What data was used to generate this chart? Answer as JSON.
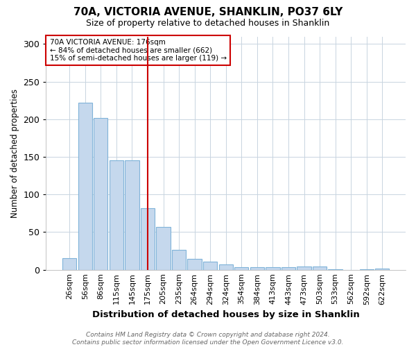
{
  "title1": "70A, VICTORIA AVENUE, SHANKLIN, PO37 6LY",
  "title2": "Size of property relative to detached houses in Shanklin",
  "xlabel": "Distribution of detached houses by size in Shanklin",
  "ylabel": "Number of detached properties",
  "categories": [
    "26sqm",
    "56sqm",
    "86sqm",
    "115sqm",
    "145sqm",
    "175sqm",
    "205sqm",
    "235sqm",
    "264sqm",
    "294sqm",
    "324sqm",
    "354sqm",
    "384sqm",
    "413sqm",
    "443sqm",
    "473sqm",
    "503sqm",
    "533sqm",
    "562sqm",
    "592sqm",
    "622sqm"
  ],
  "values": [
    15,
    222,
    202,
    145,
    145,
    82,
    57,
    26,
    14,
    11,
    7,
    3,
    3,
    3,
    3,
    4,
    4,
    1,
    0,
    1,
    2
  ],
  "bar_color": "#c5d8ed",
  "bar_edge_color": "#7fb3d9",
  "vline_x": 5,
  "vline_color": "#cc0000",
  "annotation_text": "70A VICTORIA AVENUE: 176sqm\n← 84% of detached houses are smaller (662)\n15% of semi-detached houses are larger (119) →",
  "annotation_box_color": "#ffffff",
  "annotation_box_edge": "#cc0000",
  "ylim": [
    0,
    310
  ],
  "yticks": [
    0,
    50,
    100,
    150,
    200,
    250,
    300
  ],
  "footnote": "Contains HM Land Registry data © Crown copyright and database right 2024.\nContains public sector information licensed under the Open Government Licence v3.0.",
  "bg_color": "#ffffff",
  "plot_bg_color": "#ffffff",
  "grid_color": "#c8d4e0"
}
